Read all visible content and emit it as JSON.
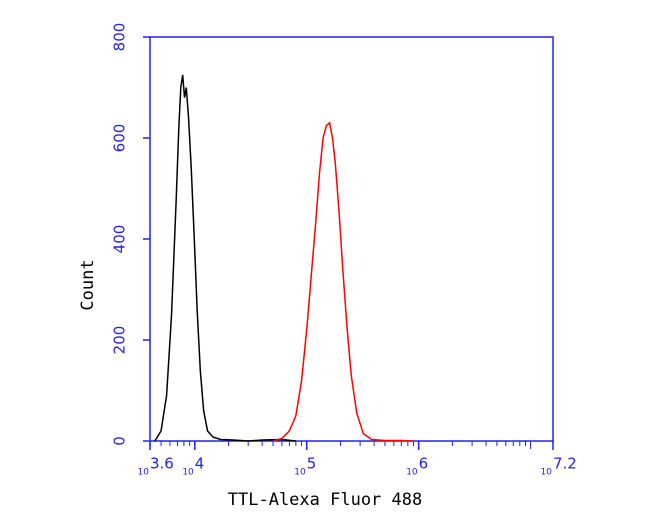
{
  "chart_data": {
    "type": "line",
    "x_label": "TTL-Alexa Fluor 488",
    "y_label": "Count",
    "xscale": "log",
    "xlim": [
      3981.07,
      15848931.92
    ],
    "ylim": [
      0,
      800
    ],
    "yticks": [
      0,
      200,
      400,
      600,
      800
    ],
    "xticks": [
      {
        "value": 3981.07,
        "label": "10",
        "exponent": "3.6"
      },
      {
        "value": 10000,
        "label": "10",
        "exponent": "4"
      },
      {
        "value": 100000,
        "label": "10",
        "exponent": "5"
      },
      {
        "value": 1000000,
        "label": "10",
        "exponent": "6"
      },
      {
        "value": 15848931.92,
        "label": "10",
        "exponent": "7.2"
      }
    ],
    "axis_color": "#2222ee",
    "series": [
      {
        "color": "#000000",
        "x": [
          4400,
          5000,
          5600,
          6200,
          6800,
          7200,
          7500,
          7800,
          8100,
          8400,
          8800,
          9300,
          9900,
          10500,
          11200,
          12000,
          13000,
          14500,
          17000,
          22000,
          30000,
          40000,
          60000,
          80000
        ],
        "values": [
          0,
          20,
          90,
          250,
          470,
          620,
          700,
          725,
          680,
          700,
          640,
          540,
          400,
          260,
          140,
          60,
          20,
          8,
          3,
          2,
          0,
          2,
          3,
          0
        ]
      },
      {
        "color": "#ff0000",
        "x": [
          50000,
          60000,
          70000,
          80000,
          90000,
          100000,
          110000,
          120000,
          130000,
          140000,
          150000,
          160000,
          170000,
          180000,
          195000,
          210000,
          230000,
          250000,
          280000,
          320000,
          380000,
          500000,
          700000,
          900000
        ],
        "values": [
          0,
          5,
          20,
          50,
          120,
          220,
          330,
          430,
          530,
          600,
          625,
          630,
          600,
          550,
          450,
          340,
          220,
          130,
          55,
          15,
          3,
          1,
          1,
          0
        ]
      }
    ]
  }
}
